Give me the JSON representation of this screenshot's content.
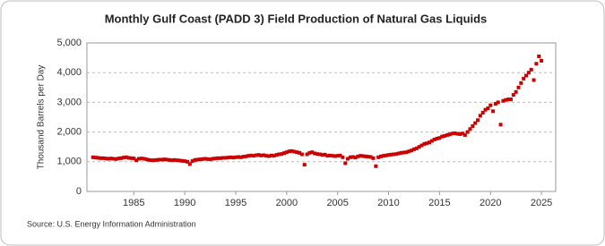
{
  "chart_data": {
    "type": "scatter",
    "title": "Monthly Gulf Coast (PADD 3) Field Production of Natural Gas Liquids",
    "y_label": "Thousand Barrels per Day",
    "source": "Source: U.S. Energy Information Administration",
    "color": "#cc0000",
    "grid": true,
    "xlim": [
      1980.4,
      2026.4
    ],
    "xticks": [
      1985,
      1990,
      1995,
      2000,
      2005,
      2010,
      2015,
      2020,
      2025
    ],
    "ylim": [
      0,
      5000
    ],
    "yticks": [
      0,
      {
        "value": 1000,
        "label": "1,000"
      },
      {
        "value": 2000,
        "label": "2,000"
      },
      {
        "value": 3000,
        "label": "3,000"
      },
      {
        "value": 4000,
        "label": "4,000"
      },
      {
        "value": 5000,
        "label": "5,000"
      }
    ],
    "x": [
      1981,
      1981.25,
      1981.5,
      1981.75,
      1982,
      1982.25,
      1982.5,
      1982.75,
      1983,
      1983.25,
      1983.5,
      1983.75,
      1984,
      1984.25,
      1984.5,
      1984.75,
      1985,
      1985.25,
      1985.5,
      1985.75,
      1986,
      1986.25,
      1986.5,
      1986.75,
      1987,
      1987.25,
      1987.5,
      1987.75,
      1988,
      1988.25,
      1988.5,
      1988.75,
      1989,
      1989.25,
      1989.5,
      1989.75,
      1990,
      1990.25,
      1990.5,
      1990.75,
      1991,
      1991.25,
      1991.5,
      1991.75,
      1992,
      1992.25,
      1992.5,
      1992.75,
      1993,
      1993.25,
      1993.5,
      1993.75,
      1994,
      1994.25,
      1994.5,
      1994.75,
      1995,
      1995.25,
      1995.5,
      1995.75,
      1996,
      1996.25,
      1996.5,
      1996.75,
      1997,
      1997.25,
      1997.5,
      1997.75,
      1998,
      1998.25,
      1998.5,
      1998.75,
      1999,
      1999.25,
      1999.5,
      1999.75,
      2000,
      2000.25,
      2000.5,
      2000.75,
      2001,
      2001.25,
      2001.5,
      2001.75,
      2002,
      2002.25,
      2002.5,
      2002.75,
      2003,
      2003.25,
      2003.5,
      2003.75,
      2004,
      2004.25,
      2004.5,
      2004.75,
      2005,
      2005.25,
      2005.5,
      2005.75,
      2006,
      2006.25,
      2006.5,
      2006.75,
      2007,
      2007.25,
      2007.5,
      2007.75,
      2008,
      2008.25,
      2008.5,
      2008.75,
      2009,
      2009.25,
      2009.5,
      2009.75,
      2010,
      2010.25,
      2010.5,
      2010.75,
      2011,
      2011.25,
      2011.5,
      2011.75,
      2012,
      2012.25,
      2012.5,
      2012.75,
      2013,
      2013.25,
      2013.5,
      2013.75,
      2014,
      2014.25,
      2014.5,
      2014.75,
      2015,
      2015.25,
      2015.5,
      2015.75,
      2016,
      2016.25,
      2016.5,
      2016.75,
      2017,
      2017.25,
      2017.5,
      2017.75,
      2018,
      2018.25,
      2018.5,
      2018.75,
      2019,
      2019.25,
      2019.5,
      2019.75,
      2020,
      2020.25,
      2020.5,
      2020.75,
      2021,
      2021.25,
      2021.5,
      2021.75,
      2022,
      2022.25,
      2022.5,
      2022.75,
      2023,
      2023.25,
      2023.5,
      2023.75,
      2024,
      2024.25,
      2024.5,
      2024.75,
      2025
    ],
    "values": [
      1150,
      1140,
      1130,
      1120,
      1120,
      1110,
      1100,
      1110,
      1100,
      1090,
      1110,
      1120,
      1140,
      1150,
      1130,
      1120,
      1110,
      1050,
      1100,
      1110,
      1100,
      1080,
      1060,
      1050,
      1050,
      1060,
      1070,
      1070,
      1080,
      1070,
      1060,
      1050,
      1060,
      1050,
      1040,
      1030,
      1020,
      1000,
      920,
      1020,
      1060,
      1070,
      1080,
      1090,
      1100,
      1090,
      1080,
      1100,
      1110,
      1120,
      1120,
      1130,
      1130,
      1140,
      1150,
      1140,
      1150,
      1160,
      1150,
      1170,
      1180,
      1200,
      1210,
      1200,
      1220,
      1230,
      1210,
      1220,
      1200,
      1190,
      1210,
      1200,
      1230,
      1250,
      1260,
      1290,
      1320,
      1350,
      1360,
      1340,
      1320,
      1300,
      1250,
      900,
      1250,
      1300,
      1320,
      1280,
      1260,
      1250,
      1230,
      1240,
      1200,
      1210,
      1200,
      1190,
      1200,
      1210,
      1150,
      950,
      1100,
      1150,
      1160,
      1140,
      1180,
      1200,
      1190,
      1180,
      1170,
      1160,
      1120,
      850,
      1150,
      1180,
      1200,
      1210,
      1230,
      1240,
      1250,
      1260,
      1280,
      1300,
      1310,
      1320,
      1350,
      1380,
      1420,
      1450,
      1500,
      1550,
      1600,
      1620,
      1650,
      1700,
      1750,
      1780,
      1800,
      1850,
      1870,
      1900,
      1920,
      1950,
      1960,
      1940,
      1930,
      1950,
      1900,
      2000,
      2100,
      2200,
      2300,
      2400,
      2550,
      2650,
      2750,
      2800,
      2900,
      2700,
      2950,
      3000,
      2250,
      3050,
      3080,
      3100,
      3100,
      3250,
      3350,
      3500,
      3650,
      3800,
      3900,
      4000,
      4100,
      3750,
      4300,
      4550,
      4400
    ]
  }
}
